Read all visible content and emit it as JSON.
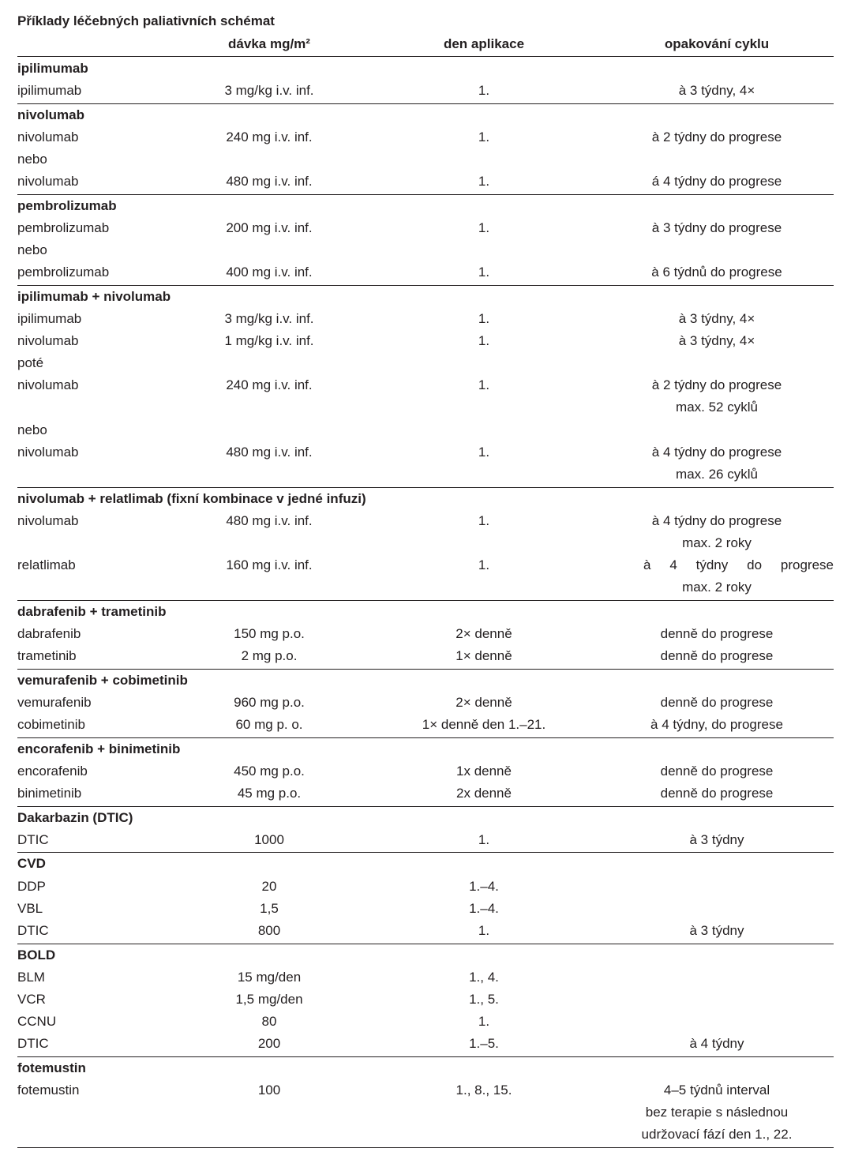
{
  "title": "Příklady léčebných paliativních schémat",
  "headers": {
    "dose": "dávka mg/m²",
    "day": "den aplikace",
    "cycle": "opakování cyklu"
  },
  "groups": [
    {
      "title": "ipilimumab",
      "rows": [
        [
          "ipilimumab",
          "3 mg/kg i.v. inf.",
          "1.",
          "à 3 týdny, 4×"
        ]
      ]
    },
    {
      "title": "nivolumab",
      "rows": [
        [
          "nivolumab",
          "240 mg i.v. inf.",
          "1.",
          "à 2 týdny do progrese"
        ],
        [
          "nebo",
          "",
          "",
          ""
        ],
        [
          "nivolumab",
          "480 mg i.v. inf.",
          "1.",
          "á 4 týdny do progrese"
        ]
      ]
    },
    {
      "title": "pembrolizumab",
      "rows": [
        [
          "pembrolizumab",
          "200 mg i.v. inf.",
          "1.",
          "à 3 týdny do progrese"
        ],
        [
          "nebo",
          "",
          "",
          ""
        ],
        [
          "pembrolizumab",
          "400 mg i.v. inf.",
          "1.",
          "à 6 týdnů do progrese"
        ]
      ]
    },
    {
      "title": "ipilimumab + nivolumab",
      "rows": [
        [
          "ipilimumab",
          "3 mg/kg i.v. inf.",
          "1.",
          "à 3 týdny, 4×"
        ],
        [
          "nivolumab",
          "1 mg/kg i.v. inf.",
          "1.",
          "à 3 týdny, 4×"
        ],
        [
          "poté",
          "",
          "",
          ""
        ],
        [
          "nivolumab",
          "240 mg i.v. inf.",
          "1.",
          "à 2 týdny do progrese"
        ],
        [
          "",
          "",
          "",
          "max. 52 cyklů"
        ],
        [
          "nebo",
          "",
          "",
          ""
        ],
        [
          "nivolumab",
          "480 mg i.v. inf.",
          "1.",
          "à 4 týdny do progrese"
        ],
        [
          "",
          "",
          "",
          "max. 26 cyklů"
        ]
      ]
    },
    {
      "title": "nivolumab + relatlimab (fixní kombinace v jedné infuzi)",
      "rows": [
        [
          "nivolumab",
          "480 mg i.v. inf.",
          "1.",
          "à 4 týdny do progrese"
        ],
        [
          "",
          "",
          "",
          "max. 2 roky"
        ],
        [
          "relatlimab",
          "160 mg i.v. inf.",
          "1.",
          "à 4 týdny do progrese"
        ],
        [
          "",
          "",
          "",
          "max. 2 roky"
        ]
      ]
    },
    {
      "title": "dabrafenib + trametinib",
      "rows": [
        [
          "dabrafenib",
          "150 mg p.o.",
          "2× denně",
          "denně do progrese"
        ],
        [
          "trametinib",
          "2 mg p.o.",
          "1× denně",
          "denně do progrese"
        ]
      ]
    },
    {
      "title": "vemurafenib + cobimetinib",
      "rows": [
        [
          "vemurafenib",
          "960 mg p.o.",
          "2× denně",
          "denně do progrese"
        ],
        [
          "cobimetinib",
          "60 mg p. o.",
          "1× denně den 1.–21.",
          "à 4 týdny, do progrese"
        ]
      ]
    },
    {
      "title": "encorafenib + binimetinib",
      "rows": [
        [
          "encorafenib",
          "450 mg p.o.",
          "1x denně",
          "denně do progrese"
        ],
        [
          "binimetinib",
          "45 mg p.o.",
          "2x denně",
          "denně do progrese"
        ]
      ]
    },
    {
      "title": "Dakarbazin (DTIC)",
      "rows": [
        [
          "DTIC",
          "1000",
          "1.",
          "à 3 týdny"
        ]
      ]
    },
    {
      "title": "CVD",
      "rows": [
        [
          "DDP",
          "20",
          "1.–4.",
          ""
        ],
        [
          "VBL",
          "1,5",
          "1.–4.",
          ""
        ],
        [
          "DTIC",
          "800",
          "1.",
          "à 3 týdny"
        ]
      ]
    },
    {
      "title": "BOLD",
      "rows": [
        [
          "BLM",
          "15 mg/den",
          "1., 4.",
          ""
        ],
        [
          "VCR",
          "1,5 mg/den",
          "1., 5.",
          ""
        ],
        [
          "CCNU",
          "80",
          "1.",
          ""
        ],
        [
          "DTIC",
          "200",
          "1.–5.",
          "à 4 týdny"
        ]
      ]
    },
    {
      "title": "fotemustin",
      "rows": [
        [
          "fotemustin",
          "100",
          "1., 8., 15.",
          "4–5 týdnů interval"
        ],
        [
          "",
          "",
          "",
          "bez terapie s následnou"
        ],
        [
          "",
          "",
          "",
          "udržovací fází den 1., 22."
        ]
      ]
    }
  ]
}
